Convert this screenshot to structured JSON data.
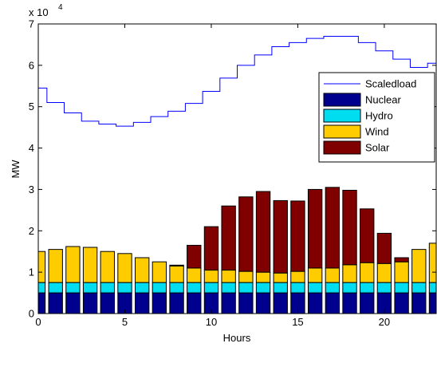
{
  "chart_data": {
    "type": "bar",
    "stacked": true,
    "title": "",
    "xlabel": "Hours",
    "ylabel": "MW",
    "y_exponent_label": "x 10",
    "y_exponent": "4",
    "xlim": [
      0,
      23
    ],
    "ylim": [
      0,
      70000
    ],
    "xticks": [
      0,
      5,
      10,
      15,
      20
    ],
    "xtick_labels": [
      "0",
      "5",
      "10",
      "15",
      "20"
    ],
    "yticks": [
      0,
      10000,
      20000,
      30000,
      40000,
      50000,
      60000,
      70000
    ],
    "ytick_labels": [
      "0",
      "1",
      "2",
      "3",
      "4",
      "5",
      "6",
      "7"
    ],
    "grid": false,
    "legend_position": "right",
    "x": [
      0,
      1,
      2,
      3,
      4,
      5,
      6,
      7,
      8,
      9,
      10,
      11,
      12,
      13,
      14,
      15,
      16,
      17,
      18,
      19,
      20,
      21,
      22,
      23
    ],
    "series": [
      {
        "name": "Nuclear",
        "color": "#00008f",
        "values": [
          5000,
          5000,
          5000,
          5000,
          5000,
          5000,
          5000,
          5000,
          5000,
          5000,
          5000,
          5000,
          5000,
          5000,
          5000,
          5000,
          5000,
          5000,
          5000,
          5000,
          5000,
          5000,
          5000,
          5000
        ]
      },
      {
        "name": "Hydro",
        "color": "#00dcf0",
        "values": [
          2500,
          2500,
          2500,
          2500,
          2500,
          2500,
          2500,
          2500,
          2500,
          2500,
          2500,
          2500,
          2500,
          2500,
          2500,
          2500,
          2500,
          2500,
          2500,
          2500,
          2500,
          2500,
          2500,
          2500
        ]
      },
      {
        "name": "Wind",
        "color": "#ffcc00",
        "values": [
          7500,
          8000,
          8700,
          8500,
          7500,
          7000,
          6000,
          5000,
          4000,
          3500,
          3000,
          3000,
          2700,
          2500,
          2300,
          2700,
          3500,
          3500,
          4300,
          4800,
          4600,
          5000,
          8000,
          9500
        ]
      },
      {
        "name": "Solar",
        "color": "#800000",
        "values": [
          0,
          0,
          0,
          0,
          0,
          0,
          0,
          0,
          200,
          5500,
          10500,
          15500,
          18000,
          19500,
          17500,
          17000,
          19000,
          19500,
          18000,
          13000,
          7300,
          1000,
          0,
          0
        ]
      }
    ],
    "line_series": {
      "name": "Scaledload",
      "color": "#0000ff",
      "values": [
        54500,
        51000,
        48500,
        46500,
        45800,
        45300,
        46200,
        47600,
        48900,
        50800,
        53700,
        56900,
        60000,
        62500,
        64500,
        65500,
        66500,
        67000,
        67000,
        65500,
        63500,
        61500,
        59500,
        60500
      ]
    }
  }
}
